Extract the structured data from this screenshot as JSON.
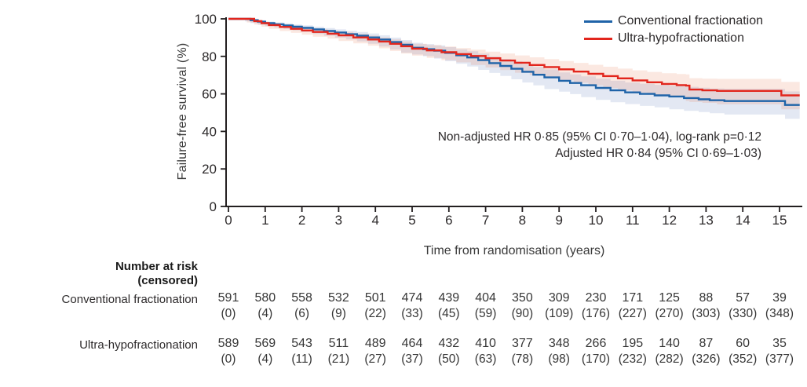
{
  "figure": {
    "ylabel": "Failure-free survival (%)",
    "xlabel": "Time from randomisation (years)"
  },
  "chart_data": {
    "type": "line",
    "subtype": "kaplan-meier-step",
    "xlabel": "Time from randomisation (years)",
    "ylabel": "Failure-free survival (%)",
    "xlim": [
      0,
      15.6
    ],
    "ylim": [
      0,
      100
    ],
    "xticks": [
      0,
      1,
      2,
      3,
      4,
      5,
      6,
      7,
      8,
      9,
      10,
      11,
      12,
      13,
      14,
      15
    ],
    "yticks": [
      0,
      20,
      40,
      60,
      80,
      100
    ],
    "grid": false,
    "legend_position": "top-right",
    "axis_color": "#231f20",
    "annotations": [
      "Non-adjusted HR 0·85 (95% CI 0·70–1·04), log-rank p=0·12",
      "Adjusted HR 0·84 (95% CI 0·69–1·03)"
    ],
    "series": [
      {
        "name": "Conventional fractionation",
        "color": "#1f63a8",
        "band_color": "rgba(82,110,180,0.16)",
        "points": [
          [
            0,
            100
          ],
          [
            0.45,
            100
          ],
          [
            0.6,
            99.3
          ],
          [
            0.8,
            98.5
          ],
          [
            1.0,
            97.7
          ],
          [
            1.25,
            97.1
          ],
          [
            1.5,
            96.5
          ],
          [
            1.75,
            95.8
          ],
          [
            2.0,
            95.2
          ],
          [
            2.3,
            94.4
          ],
          [
            2.6,
            93.5
          ],
          [
            2.9,
            92.7
          ],
          [
            3.2,
            91.8
          ],
          [
            3.5,
            91.0
          ],
          [
            3.8,
            90.1
          ],
          [
            4.1,
            89.0
          ],
          [
            4.4,
            87.6
          ],
          [
            4.7,
            86.2
          ],
          [
            5.0,
            84.6
          ],
          [
            5.3,
            83.8
          ],
          [
            5.6,
            83.0
          ],
          [
            5.9,
            81.9
          ],
          [
            6.2,
            80.6
          ],
          [
            6.5,
            79.4
          ],
          [
            6.8,
            78.0
          ],
          [
            7.1,
            76.4
          ],
          [
            7.4,
            74.9
          ],
          [
            7.7,
            73.4
          ],
          [
            8.0,
            71.8
          ],
          [
            8.3,
            70.2
          ],
          [
            8.6,
            68.8
          ],
          [
            9.0,
            67.0
          ],
          [
            9.3,
            65.8
          ],
          [
            9.6,
            64.6
          ],
          [
            10.0,
            63.2
          ],
          [
            10.4,
            61.9
          ],
          [
            10.8,
            60.8
          ],
          [
            11.2,
            60.0
          ],
          [
            11.6,
            59.2
          ],
          [
            12.0,
            58.6
          ],
          [
            12.4,
            57.8
          ],
          [
            12.8,
            57.1
          ],
          [
            13.1,
            56.6
          ],
          [
            13.5,
            56.2
          ],
          [
            15.15,
            56.2
          ],
          [
            15.15,
            54.1
          ],
          [
            15.55,
            54.1
          ]
        ]
      },
      {
        "name": "Ultra-hypofractionation",
        "color": "#e2261d",
        "band_color": "rgba(230,110,70,0.16)",
        "points": [
          [
            0,
            100
          ],
          [
            0.5,
            100
          ],
          [
            0.7,
            98.8
          ],
          [
            0.9,
            97.7
          ],
          [
            1.1,
            96.7
          ],
          [
            1.4,
            95.7
          ],
          [
            1.7,
            94.7
          ],
          [
            2.0,
            93.8
          ],
          [
            2.3,
            93.0
          ],
          [
            2.7,
            92.1
          ],
          [
            3.0,
            91.2
          ],
          [
            3.4,
            90.1
          ],
          [
            3.8,
            89.0
          ],
          [
            4.1,
            87.9
          ],
          [
            4.4,
            86.7
          ],
          [
            4.7,
            85.4
          ],
          [
            5.0,
            84.1
          ],
          [
            5.4,
            83.2
          ],
          [
            5.8,
            82.2
          ],
          [
            6.2,
            81.2
          ],
          [
            6.6,
            80.2
          ],
          [
            7.0,
            79.0
          ],
          [
            7.4,
            77.8
          ],
          [
            7.8,
            76.6
          ],
          [
            8.2,
            75.4
          ],
          [
            8.6,
            74.3
          ],
          [
            9.0,
            73.1
          ],
          [
            9.4,
            71.9
          ],
          [
            9.8,
            70.7
          ],
          [
            10.2,
            69.5
          ],
          [
            10.6,
            68.3
          ],
          [
            11.0,
            67.2
          ],
          [
            11.4,
            66.2
          ],
          [
            11.8,
            65.3
          ],
          [
            12.2,
            64.7
          ],
          [
            12.45,
            64.4
          ],
          [
            12.55,
            62.3
          ],
          [
            12.9,
            61.9
          ],
          [
            13.3,
            61.6
          ],
          [
            15.05,
            61.6
          ],
          [
            15.05,
            59.2
          ],
          [
            15.55,
            59.2
          ]
        ]
      }
    ],
    "risk_table": {
      "header_line1": "Number at risk",
      "header_line2": "(censored)",
      "rows": [
        {
          "label": "Conventional fractionation",
          "at_risk": [
            "591",
            "580",
            "558",
            "532",
            "501",
            "474",
            "439",
            "404",
            "350",
            "309",
            "230",
            "171",
            "125",
            "88",
            "57",
            "39"
          ],
          "censored": [
            "(0)",
            "(4)",
            "(6)",
            "(9)",
            "(22)",
            "(33)",
            "(45)",
            "(59)",
            "(90)",
            "(109)",
            "(176)",
            "(227)",
            "(270)",
            "(303)",
            "(330)",
            "(348)"
          ]
        },
        {
          "label": "Ultra-hypofractionation",
          "at_risk": [
            "589",
            "569",
            "543",
            "511",
            "489",
            "464",
            "432",
            "410",
            "377",
            "348",
            "266",
            "195",
            "140",
            "87",
            "60",
            "35"
          ],
          "censored": [
            "(0)",
            "(4)",
            "(11)",
            "(21)",
            "(27)",
            "(37)",
            "(50)",
            "(63)",
            "(78)",
            "(98)",
            "(170)",
            "(232)",
            "(282)",
            "(326)",
            "(352)",
            "(377)"
          ]
        }
      ]
    }
  }
}
